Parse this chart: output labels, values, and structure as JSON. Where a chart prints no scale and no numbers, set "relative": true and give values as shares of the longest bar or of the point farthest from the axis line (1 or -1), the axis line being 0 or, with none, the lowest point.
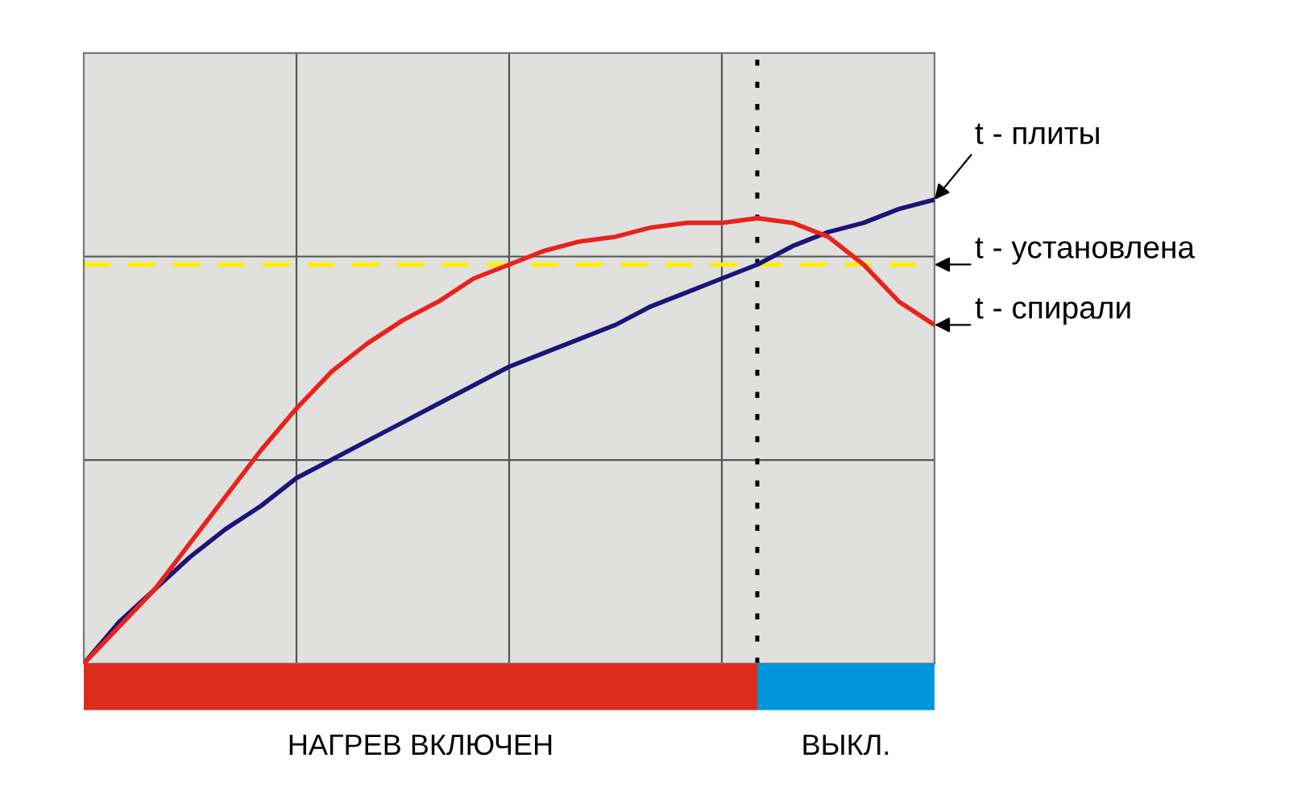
{
  "chart_data": {
    "type": "line",
    "relative": true,
    "grid": true,
    "tick_labels": false,
    "legend": false,
    "marker": "none",
    "line_style": "solid",
    "categories": [
      null,
      null,
      null,
      null,
      null,
      null,
      null,
      null,
      null,
      null,
      null,
      null,
      null,
      null,
      null,
      null,
      null,
      null,
      null,
      null,
      null,
      null,
      null,
      null,
      null
    ],
    "series": [
      {
        "name": "t - плиты",
        "color": "#1c1478",
        "values": [
          0,
          0.09,
          0.16,
          0.23,
          0.29,
          0.34,
          0.4,
          0.44,
          0.48,
          0.52,
          0.56,
          0.6,
          0.64,
          0.67,
          0.7,
          0.73,
          0.77,
          0.8,
          0.83,
          0.86,
          0.9,
          0.93,
          0.95,
          0.98,
          1
        ]
      },
      {
        "name": "t - спирали",
        "color": "#e8231c",
        "values": [
          0,
          0.08,
          0.16,
          0.26,
          0.36,
          0.46,
          0.55,
          0.63,
          0.69,
          0.74,
          0.78,
          0.83,
          0.86,
          0.89,
          0.91,
          0.92,
          0.94,
          0.95,
          0.95,
          0.96,
          0.95,
          0.92,
          0.86,
          0.78,
          0.73
        ]
      }
    ],
    "ref_lines": [
      {
        "axis": "y",
        "value": 0.86,
        "label": "t - установлена",
        "color": "#ffee00",
        "line_style": "dashed"
      }
    ],
    "annotations": [
      "НАГРЕВ ВКЛЮЧЕН",
      "ВЫКЛ."
    ]
  }
}
